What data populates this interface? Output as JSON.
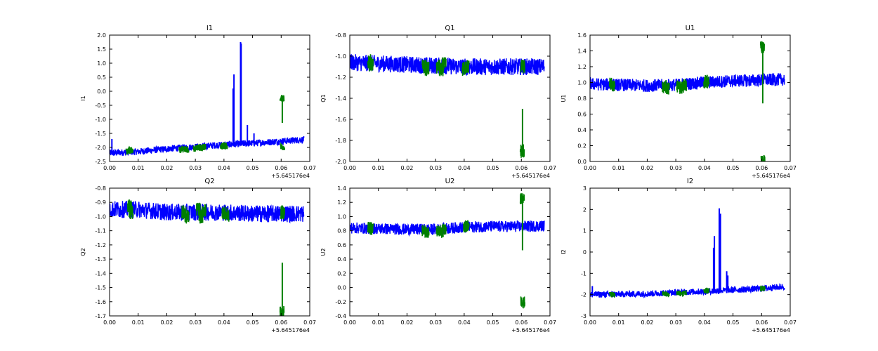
{
  "figure": {
    "offset_label": "+5.645176e4"
  },
  "colors": {
    "blue_series": "#0000ff",
    "green_series": "#007f00",
    "axes": "#000000",
    "background": "#ffffff"
  },
  "chart_data": [
    {
      "type": "line",
      "title": "I1",
      "ylabel": "I1",
      "xlabel": "",
      "xlim": [
        0.0,
        0.07
      ],
      "ylim": [
        -2.5,
        2.0
      ],
      "xticks": [
        "0.00",
        "0.01",
        "0.02",
        "0.03",
        "0.04",
        "0.05",
        "0.06",
        "0.07"
      ],
      "yticks": [
        "-2.5",
        "-2.0",
        "-1.5",
        "-1.0",
        "-0.5",
        "0.0",
        "0.5",
        "1.0",
        "1.5",
        "2.0"
      ],
      "x_offset_label": "+5.645176e4",
      "grid": false,
      "series": [
        {
          "color": "blue",
          "x": [
            0.0,
            0.01,
            0.02,
            0.03,
            0.04,
            0.05,
            0.06,
            0.068
          ],
          "y": [
            -2.2,
            -2.15,
            -2.05,
            -1.98,
            -1.9,
            -1.85,
            -1.78,
            -1.72
          ],
          "spread": 0.12,
          "spikes": [
            {
              "x": 0.0008,
              "y": -1.7
            },
            {
              "x": 0.0432,
              "y": 0.1
            },
            {
              "x": 0.0435,
              "y": 0.6
            },
            {
              "x": 0.0458,
              "y": 1.75
            },
            {
              "x": 0.046,
              "y": 1.7
            },
            {
              "x": 0.0482,
              "y": -1.2
            },
            {
              "x": 0.0505,
              "y": -1.5
            }
          ]
        },
        {
          "color": "green",
          "x": [
            0.0065,
            0.0075,
            0.025,
            0.026,
            0.027,
            0.03,
            0.031,
            0.032,
            0.033,
            0.0395,
            0.04,
            0.0405,
            0.0603,
            0.0605
          ],
          "y": [
            -2.15,
            -2.1,
            -2.08,
            -2.05,
            -2.07,
            -2.05,
            -2.0,
            -2.02,
            -1.98,
            -1.95,
            -1.92,
            -1.94,
            -0.25,
            -2.0
          ],
          "spread": 0.12,
          "spikes": [
            {
              "x": 0.0604,
              "y": -0.25
            }
          ]
        }
      ]
    },
    {
      "type": "line",
      "title": "Q1",
      "ylabel": "Q1",
      "xlabel": "",
      "xlim": [
        0.0,
        0.07
      ],
      "ylim": [
        -2.0,
        -0.8
      ],
      "xticks": [
        "0.00",
        "0.01",
        "0.02",
        "0.03",
        "0.04",
        "0.05",
        "0.06",
        "0.07"
      ],
      "yticks": [
        "-2.0",
        "-1.8",
        "-1.6",
        "-1.4",
        "-1.2",
        "-1.0",
        "-0.8"
      ],
      "x_offset_label": "+5.645176e4",
      "grid": false,
      "series": [
        {
          "color": "blue",
          "x": [
            0.0,
            0.01,
            0.02,
            0.03,
            0.04,
            0.05,
            0.06,
            0.068
          ],
          "y": [
            -1.06,
            -1.07,
            -1.08,
            -1.09,
            -1.1,
            -1.1,
            -1.1,
            -1.1
          ],
          "spread": 0.08,
          "spikes": []
        },
        {
          "color": "green",
          "x": [
            0.007,
            0.0075,
            0.026,
            0.027,
            0.031,
            0.032,
            0.033,
            0.04,
            0.041,
            0.0603,
            0.0605
          ],
          "y": [
            -1.05,
            -1.08,
            -1.1,
            -1.12,
            -1.1,
            -1.13,
            -1.08,
            -1.12,
            -1.1,
            -1.9,
            -1.1
          ],
          "spread": 0.07,
          "spikes": [
            {
              "x": 0.0604,
              "y": -1.91
            }
          ]
        }
      ]
    },
    {
      "type": "line",
      "title": "U1",
      "ylabel": "U1",
      "xlabel": "",
      "xlim": [
        0.0,
        0.07
      ],
      "ylim": [
        0.0,
        1.6
      ],
      "xticks": [
        "0.00",
        "0.01",
        "0.02",
        "0.03",
        "0.04",
        "0.05",
        "0.06",
        "0.07"
      ],
      "yticks": [
        "0.0",
        "0.2",
        "0.4",
        "0.6",
        "0.8",
        "1.0",
        "1.2",
        "1.4",
        "1.6"
      ],
      "x_offset_label": "+5.645176e4",
      "grid": false,
      "series": [
        {
          "color": "blue",
          "x": [
            0.0,
            0.01,
            0.02,
            0.03,
            0.04,
            0.05,
            0.06,
            0.068
          ],
          "y": [
            0.98,
            0.97,
            0.96,
            0.97,
            1.0,
            1.02,
            1.03,
            1.04
          ],
          "spread": 0.08,
          "spikes": []
        },
        {
          "color": "green",
          "x": [
            0.0075,
            0.008,
            0.026,
            0.027,
            0.031,
            0.032,
            0.033,
            0.0405,
            0.041,
            0.0603,
            0.0605
          ],
          "y": [
            0.98,
            0.95,
            0.95,
            0.92,
            0.95,
            0.93,
            0.97,
            1.0,
            1.02,
            1.45,
            0.02
          ],
          "spread": 0.08,
          "spikes": [
            {
              "x": 0.0604,
              "y": 1.45
            }
          ]
        }
      ]
    },
    {
      "type": "line",
      "title": "Q2",
      "ylabel": "Q2",
      "xlabel": "",
      "xlim": [
        0.0,
        0.07
      ],
      "ylim": [
        -1.7,
        -0.8
      ],
      "xticks": [
        "0.00",
        "0.01",
        "0.02",
        "0.03",
        "0.04",
        "0.05",
        "0.06",
        "0.07"
      ],
      "yticks": [
        "-1.7",
        "-1.6",
        "-1.5",
        "-1.4",
        "-1.3",
        "-1.2",
        "-1.1",
        "-1.0",
        "-0.9",
        "-0.8"
      ],
      "x_offset_label": "+5.645176e4",
      "grid": false,
      "series": [
        {
          "color": "blue",
          "x": [
            0.0,
            0.01,
            0.02,
            0.03,
            0.04,
            0.05,
            0.06,
            0.068
          ],
          "y": [
            -0.95,
            -0.95,
            -0.97,
            -0.97,
            -0.97,
            -0.98,
            -0.98,
            -0.98
          ],
          "spread": 0.06,
          "spikes": []
        },
        {
          "color": "green",
          "x": [
            0.007,
            0.0075,
            0.026,
            0.027,
            0.031,
            0.032,
            0.033,
            0.04,
            0.041,
            0.0603,
            0.0605
          ],
          "y": [
            -0.93,
            -0.97,
            -0.97,
            -1.0,
            -0.95,
            -1.0,
            -0.96,
            -0.97,
            -0.99,
            -1.68,
            -0.97
          ],
          "spread": 0.05,
          "spikes": [
            {
              "x": 0.0604,
              "y": -1.68
            }
          ]
        }
      ]
    },
    {
      "type": "line",
      "title": "U2",
      "ylabel": "U2",
      "xlabel": "",
      "xlim": [
        0.0,
        0.07
      ],
      "ylim": [
        -0.4,
        1.4
      ],
      "xticks": [
        "0.00",
        "0.01",
        "0.02",
        "0.03",
        "0.04",
        "0.05",
        "0.06",
        "0.07"
      ],
      "yticks": [
        "-0.4",
        "-0.2",
        "0.0",
        "0.2",
        "0.4",
        "0.6",
        "0.8",
        "1.0",
        "1.2",
        "1.4"
      ],
      "x_offset_label": "+5.645176e4",
      "grid": false,
      "series": [
        {
          "color": "blue",
          "x": [
            0.0,
            0.01,
            0.02,
            0.03,
            0.04,
            0.05,
            0.06,
            0.068
          ],
          "y": [
            0.84,
            0.83,
            0.82,
            0.82,
            0.85,
            0.86,
            0.86,
            0.87
          ],
          "spread": 0.08,
          "spikes": []
        },
        {
          "color": "green",
          "x": [
            0.007,
            0.0075,
            0.026,
            0.027,
            0.031,
            0.032,
            0.033,
            0.0405,
            0.041,
            0.0603,
            0.0605
          ],
          "y": [
            0.85,
            0.82,
            0.8,
            0.78,
            0.8,
            0.77,
            0.82,
            0.85,
            0.87,
            1.25,
            -0.2
          ],
          "spread": 0.08,
          "spikes": [
            {
              "x": 0.0604,
              "y": 1.27
            }
          ]
        }
      ]
    },
    {
      "type": "line",
      "title": "I2",
      "ylabel": "I2",
      "xlabel": "",
      "xlim": [
        0.0,
        0.07
      ],
      "ylim": [
        -3.0,
        3.0
      ],
      "xticks": [
        "0.00",
        "0.01",
        "0.02",
        "0.03",
        "0.04",
        "0.05",
        "0.06",
        "0.07"
      ],
      "yticks": [
        "-3",
        "-2",
        "-1",
        "0",
        "1",
        "2",
        "3"
      ],
      "x_offset_label": "+5.645176e4",
      "grid": false,
      "series": [
        {
          "color": "blue",
          "x": [
            0.0,
            0.01,
            0.02,
            0.03,
            0.04,
            0.05,
            0.06,
            0.068
          ],
          "y": [
            -2.0,
            -1.98,
            -1.96,
            -1.9,
            -1.85,
            -1.78,
            -1.72,
            -1.62
          ],
          "spread": 0.15,
          "spikes": [
            {
              "x": 0.0008,
              "y": -1.6
            },
            {
              "x": 0.0432,
              "y": 0.2
            },
            {
              "x": 0.0435,
              "y": 0.75
            },
            {
              "x": 0.0452,
              "y": 2.05
            },
            {
              "x": 0.0456,
              "y": 1.8
            },
            {
              "x": 0.0478,
              "y": -0.9
            },
            {
              "x": 0.0482,
              "y": -1.1
            }
          ]
        },
        {
          "color": "green",
          "x": [
            0.0075,
            0.008,
            0.026,
            0.027,
            0.031,
            0.032,
            0.033,
            0.0405,
            0.041,
            0.0603,
            0.0605
          ],
          "y": [
            -1.98,
            -2.02,
            -1.96,
            -2.0,
            -1.92,
            -1.98,
            -1.9,
            -1.85,
            -1.82,
            -1.72,
            -1.7
          ],
          "spread": 0.12,
          "spikes": []
        }
      ]
    }
  ]
}
